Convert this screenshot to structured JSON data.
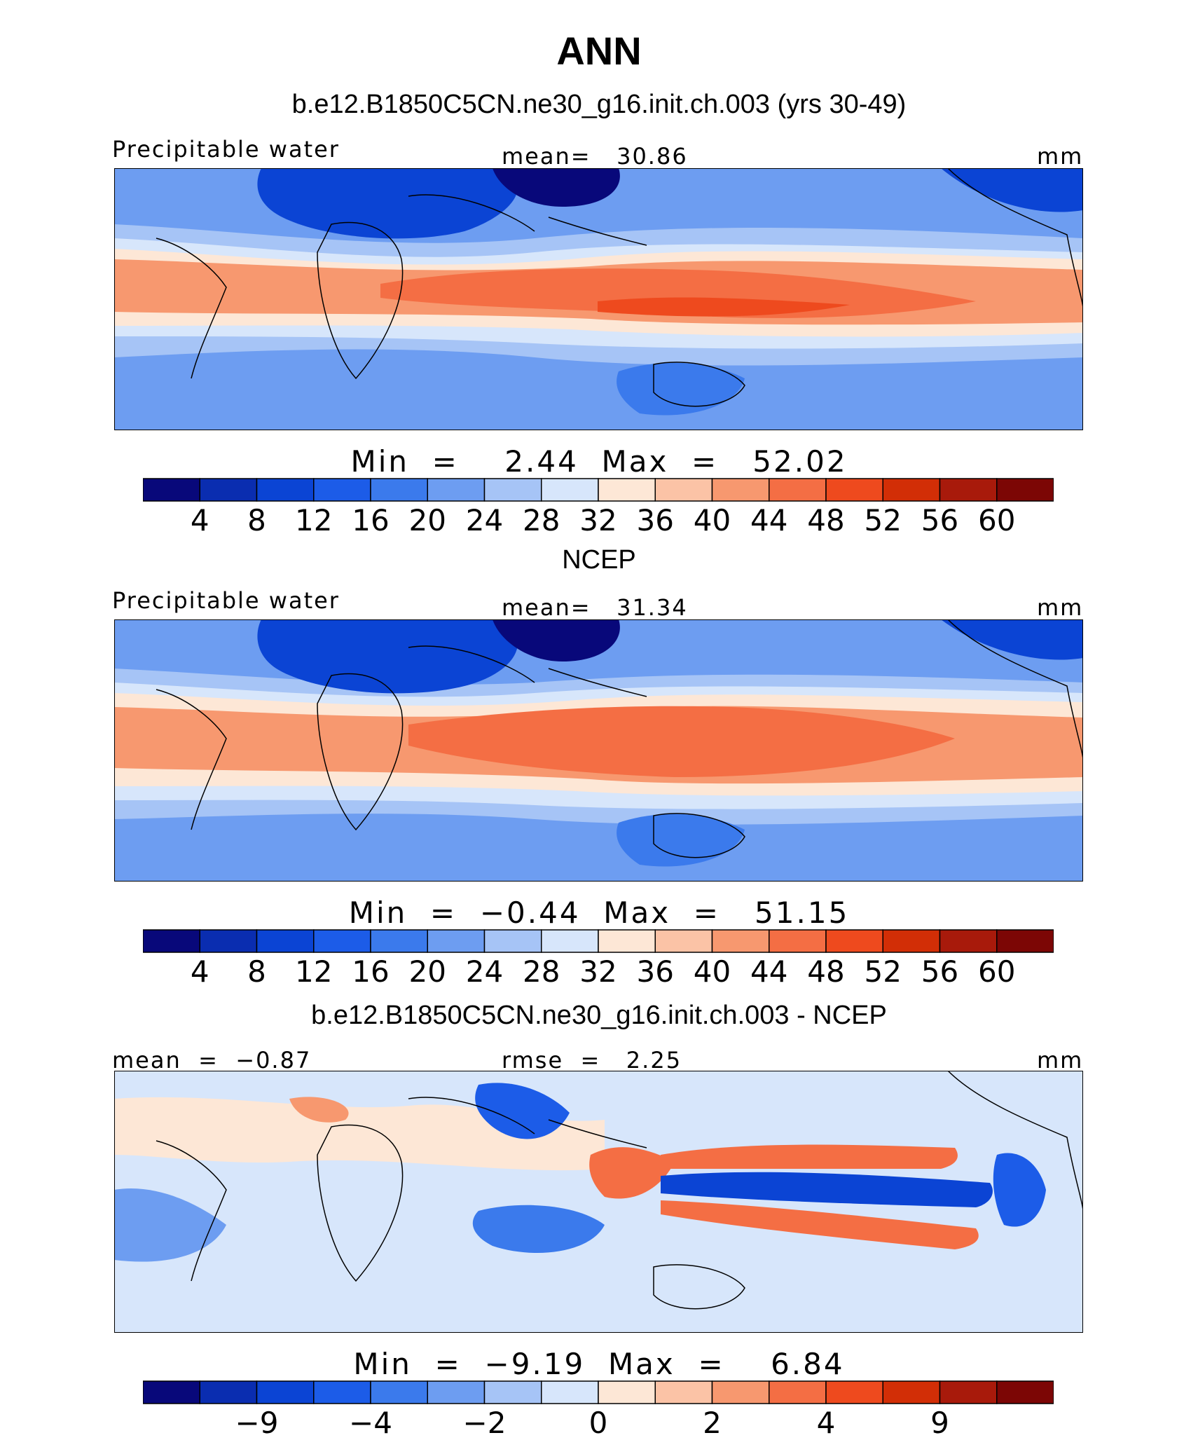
{
  "figure": {
    "title": "ANN",
    "top_subtitle": "b.e12.B1850C5CN.ne30_g16.init.ch.003 (yrs 30-49)",
    "mid_subtitle": "NCEP",
    "bottom_subtitle": "b.e12.B1850C5CN.ne30_g16.init.ch.003 - NCEP"
  },
  "colormap": [
    "#08087a",
    "#0a2db0",
    "#0b44d4",
    "#1c5ce8",
    "#3b7aec",
    "#6d9df1",
    "#a6c4f6",
    "#d7e6fb",
    "#fde7d6",
    "#fbc3a6",
    "#f7986f",
    "#f46e44",
    "#ee4a1e",
    "#d22e06",
    "#a81a0b",
    "#7c0605"
  ],
  "panels": [
    {
      "variable": "Precipitable water",
      "stat1_label": "mean=",
      "stat1_value": "30.86",
      "units": "mm",
      "min_label": "Min  =",
      "min_value": "2.44",
      "max_label": "Max  =",
      "max_value": "52.02",
      "ticks": [
        "4",
        "8",
        "12",
        "16",
        "20",
        "24",
        "28",
        "32",
        "36",
        "40",
        "44",
        "48",
        "52",
        "56",
        "60"
      ],
      "background_level": 5
    },
    {
      "variable": "Precipitable water",
      "stat1_label": "mean=",
      "stat1_value": "31.34",
      "units": "mm",
      "min_label": "Min  =",
      "min_value": "−0.44",
      "max_label": "Max  =",
      "max_value": "51.15",
      "ticks": [
        "4",
        "8",
        "12",
        "16",
        "20",
        "24",
        "28",
        "32",
        "36",
        "40",
        "44",
        "48",
        "52",
        "56",
        "60"
      ],
      "background_level": 5
    },
    {
      "variable": "",
      "stat0_label": "mean  =",
      "stat0_value": "−0.87",
      "stat1_label": "rmse  =",
      "stat1_value": "2.25",
      "units": "mm",
      "min_label": "Min  =",
      "min_value": "−9.19",
      "max_label": "Max  =",
      "max_value": "6.84",
      "ticks": [
        "−9",
        "−4",
        "−2",
        "0",
        "2",
        "4",
        "9"
      ],
      "background_level": 7
    }
  ]
}
